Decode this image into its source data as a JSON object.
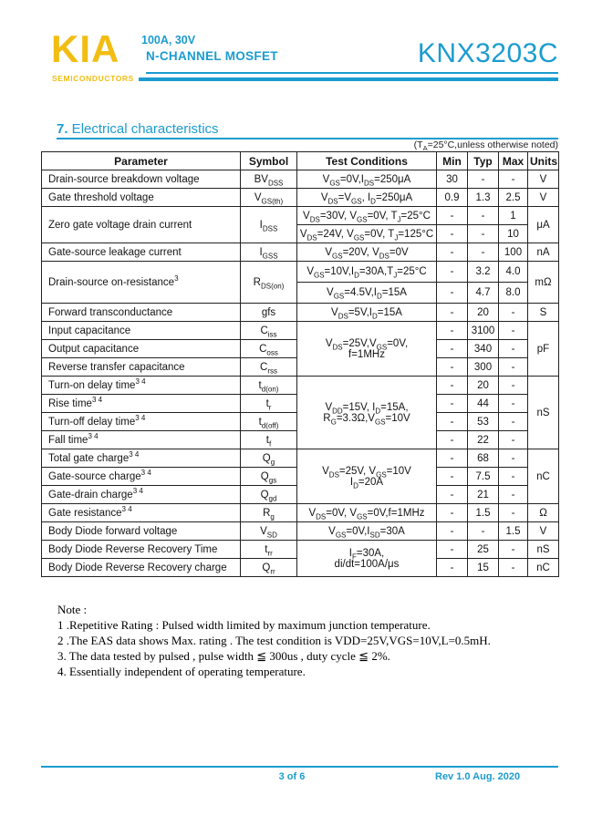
{
  "header": {
    "logo": "KIA",
    "logo_sub": "SEMICONDUCTORS",
    "subtitle_line1": "100A, 30V",
    "subtitle_line2": "N-CHANNEL MOSFET",
    "part_number": "KNX3203C"
  },
  "section": {
    "number": "7.",
    "title": " Electrical characteristics",
    "ta_note": "(T~A~=25°C,unless otherwise noted)"
  },
  "table": {
    "headers": [
      "Parameter",
      "Symbol",
      "Test Conditions",
      "Min",
      "Typ",
      "Max",
      "Units"
    ],
    "rows": [
      [
        {
          "t": "Drain-source breakdown voltage",
          "a": "l"
        },
        {
          "t": "BV~DSS~"
        },
        {
          "t": "V~GS~=0V,I~DS~=250μA"
        },
        {
          "t": "30"
        },
        {
          "t": "-"
        },
        {
          "t": "-"
        },
        {
          "t": "V"
        }
      ],
      [
        {
          "t": "Gate threshold voltage",
          "a": "l"
        },
        {
          "t": "V~GS(th)~"
        },
        {
          "t": "V~DS~=V~GS~, I~D~=250μA"
        },
        {
          "t": "0.9"
        },
        {
          "t": "1.3"
        },
        {
          "t": "2.5"
        },
        {
          "t": "V"
        }
      ],
      [
        {
          "t": "Zero gate voltage drain current",
          "a": "l",
          "rs": 2
        },
        {
          "t": "I~DSS~",
          "rs": 2
        },
        {
          "t": "V~DS~=30V, V~GS~=0V, T~J~=25°C"
        },
        {
          "t": "-"
        },
        {
          "t": "-"
        },
        {
          "t": "1"
        },
        {
          "t": "μA",
          "rs": 2
        }
      ],
      [
        {
          "t": "V~DS~=24V, V~GS~=0V, T~J~=125°C"
        },
        {
          "t": "-"
        },
        {
          "t": "-"
        },
        {
          "t": "10"
        }
      ],
      [
        {
          "t": "Gate-source leakage current",
          "a": "l"
        },
        {
          "t": "I~GSS~"
        },
        {
          "t": "V~GS~=20V, V~DS~=0V"
        },
        {
          "t": "-"
        },
        {
          "t": "-"
        },
        {
          "t": "100"
        },
        {
          "t": "nA"
        }
      ],
      [
        {
          "t": "Drain-source on-resistance^3^",
          "a": "l",
          "rs": 2
        },
        {
          "t": "R~DS(on)~",
          "rs": 2
        },
        {
          "t": "V~GS~=10V,I~D~=30A,T~J~=25°C"
        },
        {
          "t": "-"
        },
        {
          "t": "3.2"
        },
        {
          "t": "4.0"
        },
        {
          "t": "mΩ",
          "rs": 2
        }
      ],
      [
        {
          "t": "V~GS~=4.5V,I~D~=15A"
        },
        {
          "t": "-"
        },
        {
          "t": "4.7"
        },
        {
          "t": "8.0"
        }
      ],
      [
        {
          "t": "Forward transconductance",
          "a": "l"
        },
        {
          "t": "gfs"
        },
        {
          "t": "V~DS~=5V,I~D~=15A"
        },
        {
          "t": "-"
        },
        {
          "t": "20"
        },
        {
          "t": "-"
        },
        {
          "t": "S"
        }
      ],
      [
        {
          "t": "Input capacitance",
          "a": "l"
        },
        {
          "t": "C~iss~"
        },
        {
          "t": "V~DS~=25V,V~GS~=0V,\nf=1MHz",
          "rs": 3
        },
        {
          "t": "-"
        },
        {
          "t": "3100"
        },
        {
          "t": "-"
        },
        {
          "t": "pF",
          "rs": 3
        }
      ],
      [
        {
          "t": "Output capacitance",
          "a": "l"
        },
        {
          "t": "C~oss~"
        },
        {
          "t": "-"
        },
        {
          "t": "340"
        },
        {
          "t": "-"
        }
      ],
      [
        {
          "t": "Reverse transfer capacitance",
          "a": "l"
        },
        {
          "t": "C~rss~"
        },
        {
          "t": "-"
        },
        {
          "t": "300"
        },
        {
          "t": "-"
        }
      ],
      [
        {
          "t": "Turn-on delay time^3 4^",
          "a": "l"
        },
        {
          "t": "t~d(on)~"
        },
        {
          "t": "V~DD~=15V, I~D~=15A,\nR~G~=3.3Ω,V~GS~=10V",
          "rs": 4
        },
        {
          "t": "-"
        },
        {
          "t": "20"
        },
        {
          "t": "-"
        },
        {
          "t": "nS",
          "rs": 4
        }
      ],
      [
        {
          "t": "Rise time^3 4^",
          "a": "l"
        },
        {
          "t": "t~r~"
        },
        {
          "t": "-"
        },
        {
          "t": "44"
        },
        {
          "t": "-"
        }
      ],
      [
        {
          "t": "Turn-off delay time^3 4^",
          "a": "l"
        },
        {
          "t": "t~d(off)~"
        },
        {
          "t": "-"
        },
        {
          "t": "53"
        },
        {
          "t": "-"
        }
      ],
      [
        {
          "t": "Fall time^3 4^",
          "a": "l"
        },
        {
          "t": "t~f~"
        },
        {
          "t": "-"
        },
        {
          "t": "22"
        },
        {
          "t": "-"
        }
      ],
      [
        {
          "t": "Total gate charge^3 4^",
          "a": "l"
        },
        {
          "t": "Q~g~"
        },
        {
          "t": "V~DS~=25V, V~GS~=10V\nI~D~=20A",
          "rs": 3
        },
        {
          "t": "-"
        },
        {
          "t": "68"
        },
        {
          "t": "-"
        },
        {
          "t": "nC",
          "rs": 3
        }
      ],
      [
        {
          "t": "Gate-source charge^3 4^",
          "a": "l"
        },
        {
          "t": "Q~gs~"
        },
        {
          "t": "-"
        },
        {
          "t": "7.5"
        },
        {
          "t": "-"
        }
      ],
      [
        {
          "t": "Gate-drain charge^3 4^",
          "a": "l"
        },
        {
          "t": "Q~gd~"
        },
        {
          "t": "-"
        },
        {
          "t": "21"
        },
        {
          "t": "-"
        }
      ],
      [
        {
          "t": "Gate resistance^3 4^",
          "a": "l"
        },
        {
          "t": "R~g~"
        },
        {
          "t": "V~DS~=0V, V~GS~=0V,f=1MHz"
        },
        {
          "t": "-"
        },
        {
          "t": "1.5"
        },
        {
          "t": "-"
        },
        {
          "t": "Ω"
        }
      ],
      [
        {
          "t": "Body Diode forward voltage",
          "a": "l"
        },
        {
          "t": "V~SD~"
        },
        {
          "t": "V~GS~=0V,I~SD~=30A"
        },
        {
          "t": "-"
        },
        {
          "t": "-"
        },
        {
          "t": "1.5"
        },
        {
          "t": "V"
        }
      ],
      [
        {
          "t": "Body Diode Reverse Recovery Time",
          "a": "l"
        },
        {
          "t": "t~rr~"
        },
        {
          "t": "I~F~=30A,\ndi/dt=100A/μs",
          "rs": 2
        },
        {
          "t": "-"
        },
        {
          "t": "25"
        },
        {
          "t": "-"
        },
        {
          "t": "nS"
        }
      ],
      [
        {
          "t": "Body Diode Reverse Recovery charge",
          "a": "l"
        },
        {
          "t": "Q~rr~"
        },
        {
          "t": "-"
        },
        {
          "t": "15"
        },
        {
          "t": "-"
        },
        {
          "t": "nC"
        }
      ]
    ]
  },
  "notes": {
    "title": "Note :",
    "items": [
      "1 .Repetitive Rating : Pulsed width limited by maximum junction temperature.",
      "2 .The EAS data shows Max. rating . The test condition is VDD=25V,VGS=10V,L=0.5mH.",
      "3. The data tested by pulsed , pulse width ≦ 300us , duty cycle ≦ 2%.",
      "4. Essentially independent of operating temperature."
    ]
  },
  "footer": {
    "page": "3 of 6",
    "rev": "Rev 1.0 Aug. 2020"
  },
  "colors": {
    "accent_blue": "#1b9cd0",
    "logo_yellow": "#f2bd13"
  }
}
